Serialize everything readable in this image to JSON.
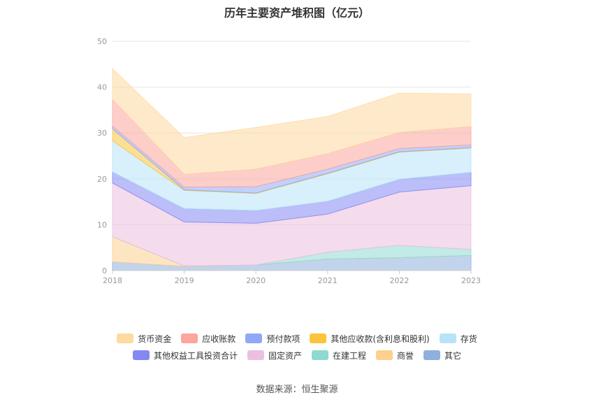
{
  "chart_data": {
    "type": "area",
    "stacked": true,
    "title": "历年主要资产堆积图（亿元）",
    "x": [
      "2018",
      "2019",
      "2020",
      "2021",
      "2022",
      "2023"
    ],
    "ylim": [
      0,
      50
    ],
    "yticks": [
      "0",
      "10",
      "20",
      "30",
      "40",
      "50"
    ],
    "grid": true,
    "legend_position": "bottom",
    "series": [
      {
        "name": "其它",
        "color": "#8fb0dc",
        "values": [
          1.9,
          0.9,
          1.2,
          2.5,
          2.8,
          3.3
        ]
      },
      {
        "name": "商誉",
        "color": "#fdd08f",
        "values": [
          5.5,
          0.1,
          0.0,
          0.0,
          0.0,
          0.0
        ]
      },
      {
        "name": "在建工程",
        "color": "#8fd9d4",
        "values": [
          0.0,
          0.0,
          0.0,
          1.5,
          2.7,
          1.3
        ]
      },
      {
        "name": "固定资产",
        "color": "#ebc0de",
        "values": [
          11.7,
          9.6,
          9.1,
          8.3,
          11.6,
          13.9
        ]
      },
      {
        "name": "其他权益工具投资合计",
        "color": "#8489f2",
        "values": [
          2.4,
          2.9,
          2.8,
          2.8,
          2.8,
          2.9
        ]
      },
      {
        "name": "存货",
        "color": "#b7e3fa",
        "values": [
          6.8,
          4.0,
          3.7,
          6.0,
          5.9,
          5.3
        ]
      },
      {
        "name": "其他应收款(含利息和股利)",
        "color": "#fcc43c",
        "values": [
          2.6,
          0.1,
          0.1,
          0.1,
          0.1,
          0.1
        ]
      },
      {
        "name": "预付款项",
        "color": "#8fa9f7",
        "values": [
          0.6,
          0.6,
          1.4,
          0.9,
          0.7,
          0.6
        ]
      },
      {
        "name": "应收账款",
        "color": "#fca69c",
        "values": [
          5.8,
          2.8,
          3.8,
          3.4,
          3.5,
          4.0
        ]
      },
      {
        "name": "货币资金",
        "color": "#fed9a0",
        "values": [
          6.7,
          8.0,
          9.1,
          8.1,
          8.6,
          7.1
        ]
      }
    ],
    "legend_order": [
      "货币资金",
      "应收账款",
      "预付款项",
      "其他应收款(含利息和股利)",
      "存货",
      "其他权益工具投资合计",
      "固定资产",
      "在建工程",
      "商誉",
      "其它"
    ]
  },
  "source": "数据来源：恒生聚源"
}
